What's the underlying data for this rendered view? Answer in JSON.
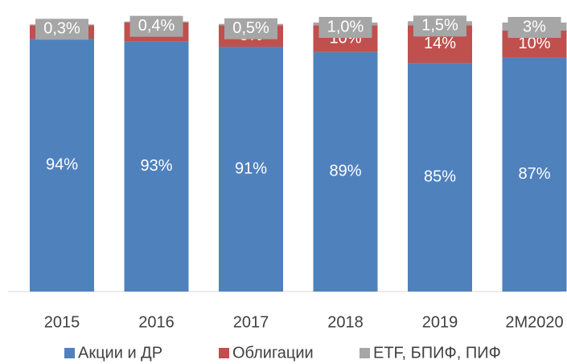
{
  "chart_data": {
    "type": "stacked_bar",
    "categories": [
      "2015",
      "2016",
      "2017",
      "2018",
      "2019",
      "2M2020"
    ],
    "series": [
      {
        "name": "Акции и ДР",
        "color": "#4f81bd",
        "values": [
          94,
          93,
          91,
          89,
          85,
          87
        ],
        "value_labels": [
          "94%",
          "93%",
          "91%",
          "89%",
          "85%",
          "87%"
        ]
      },
      {
        "name": "Облигации",
        "color": "#c0504d",
        "values": [
          5,
          7,
          8,
          10,
          14,
          10
        ],
        "value_labels": [
          "5%",
          "7%",
          "8%",
          "10%",
          "14%",
          "10%"
        ]
      },
      {
        "name": "ETF, БПИФ, ПИФ",
        "color": "#a6a6a6",
        "values": [
          0.3,
          0.4,
          0.5,
          1.0,
          1.5,
          3
        ],
        "value_labels": [
          "0,3%",
          "0,4%",
          "0,5%",
          "1,0%",
          "1,5%",
          "3%"
        ]
      }
    ],
    "ylim": [
      0,
      100
    ],
    "legend": "bottom"
  }
}
